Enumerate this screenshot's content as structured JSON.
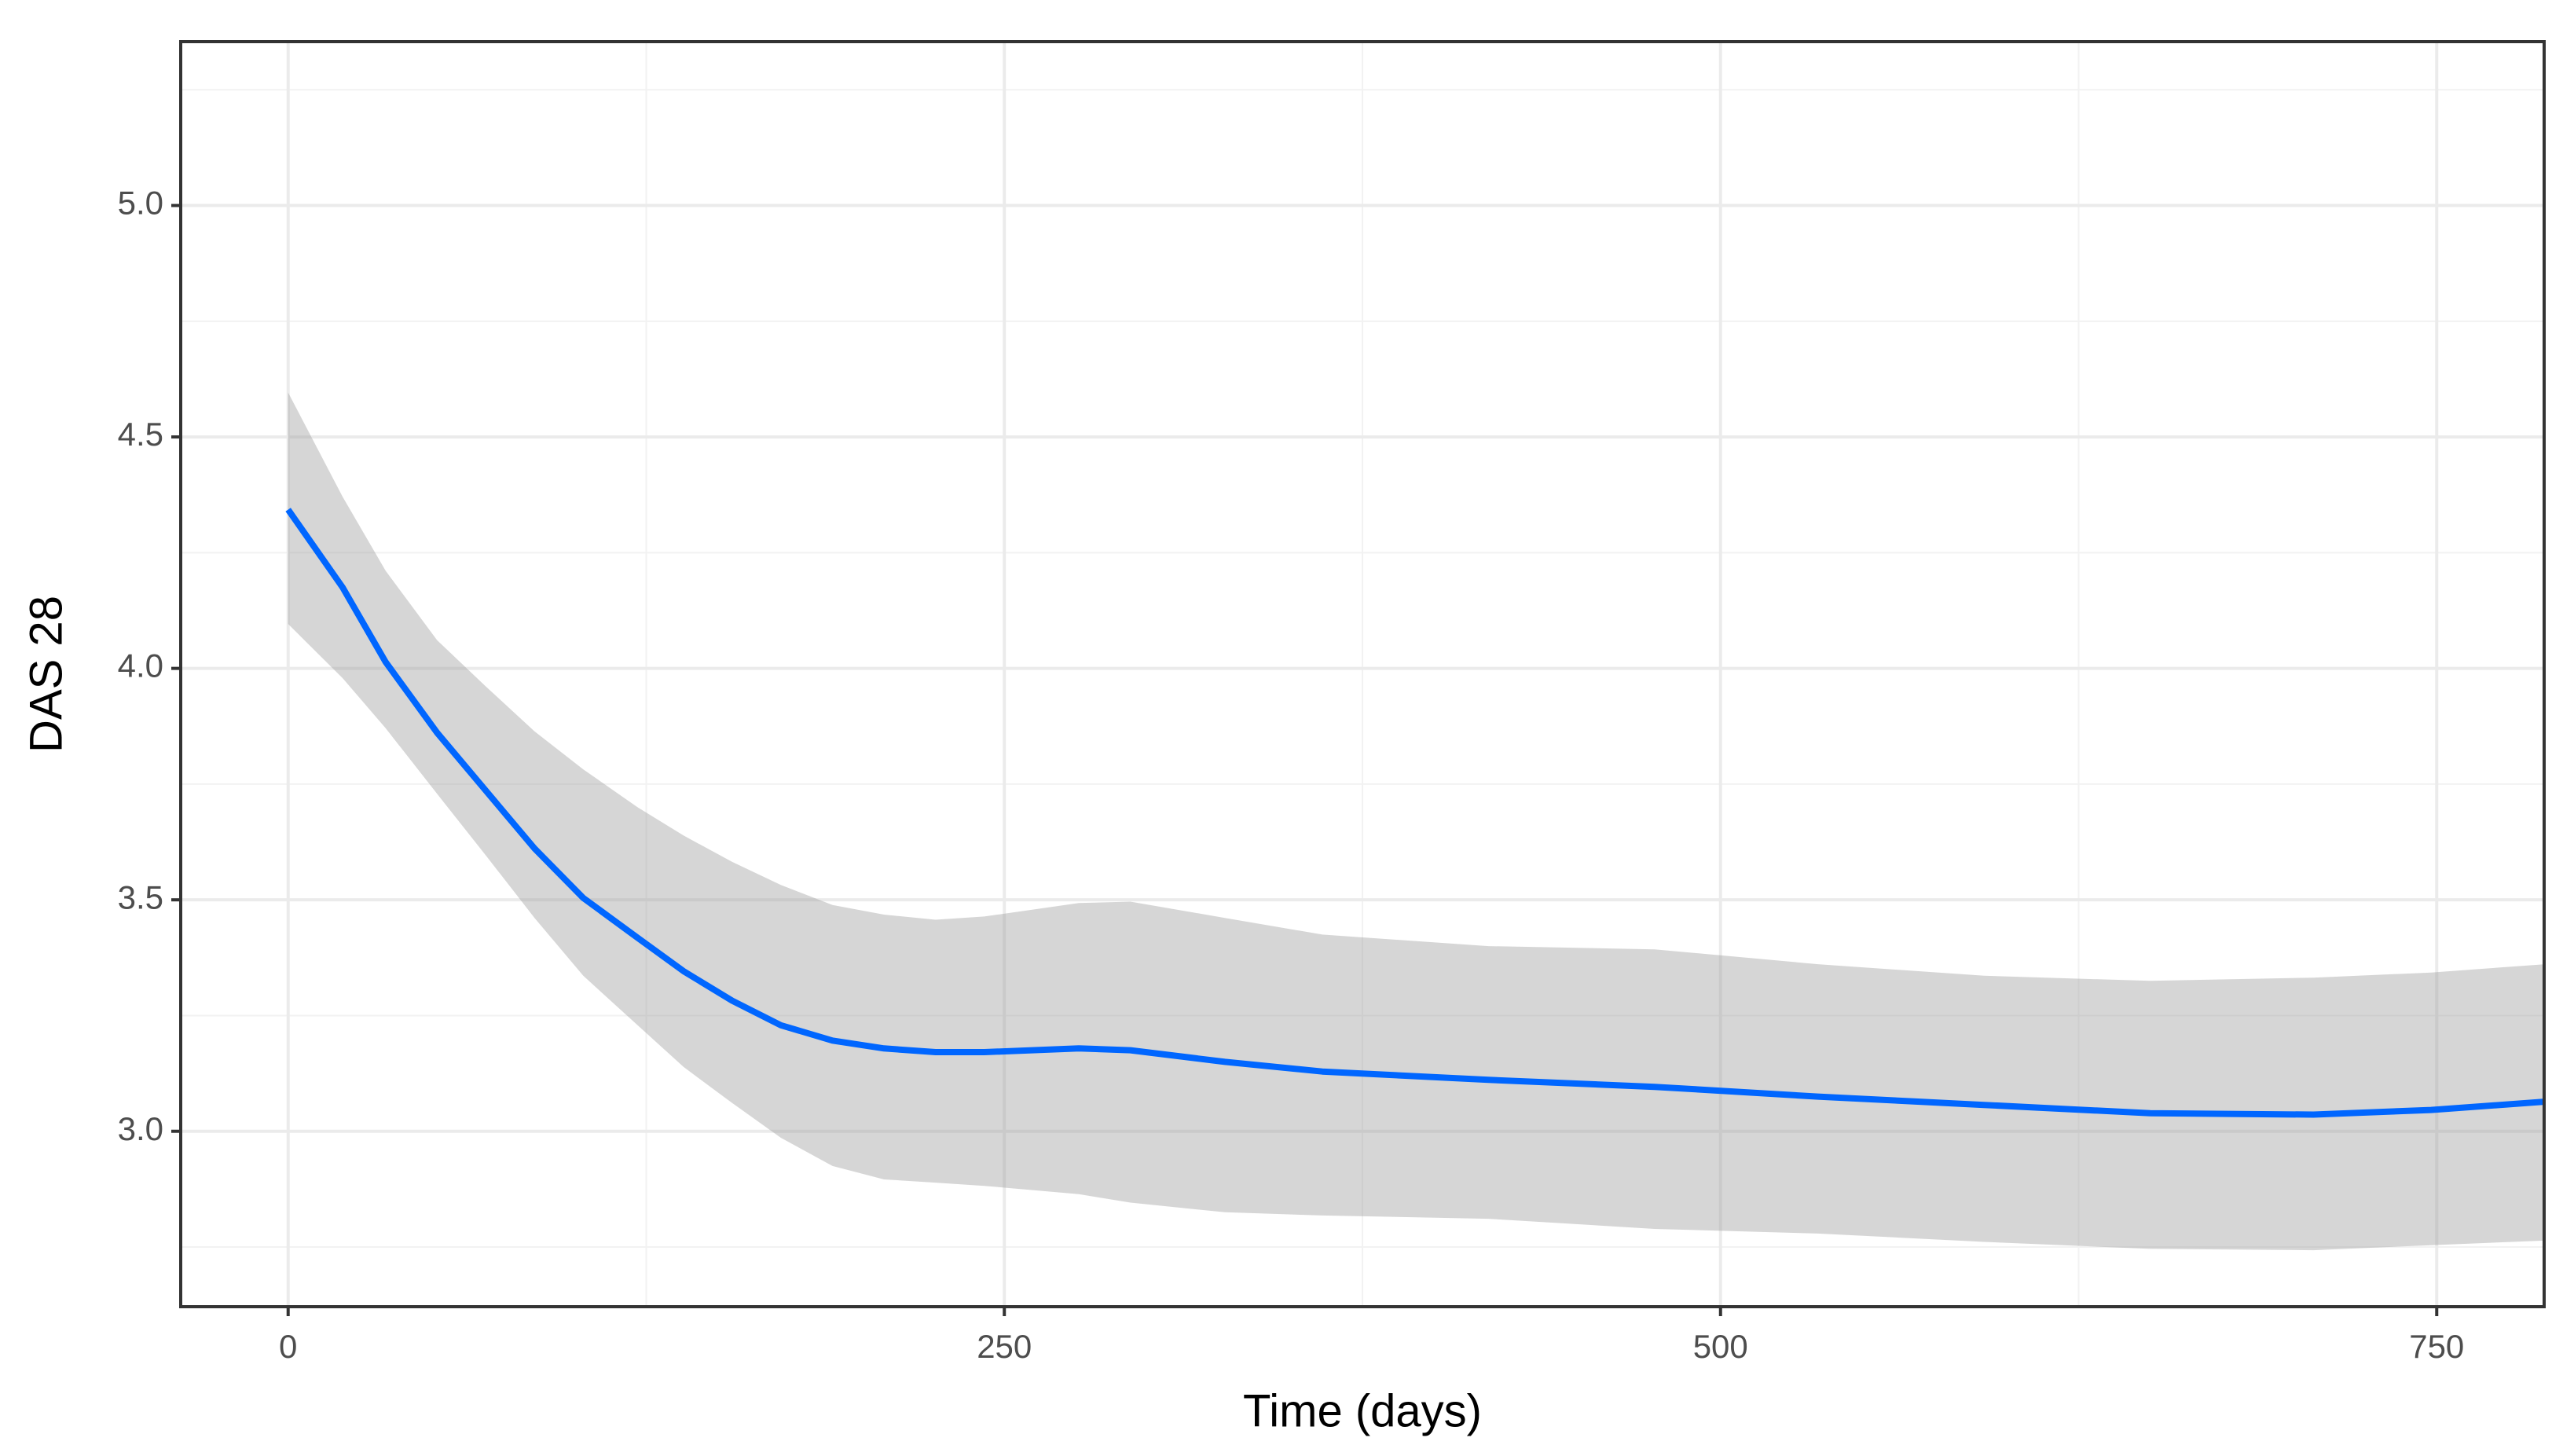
{
  "chart_data": {
    "type": "line",
    "x_label": "Time (days)",
    "y_label": "DAS 28",
    "x": [
      0,
      19,
      34,
      52,
      69,
      86,
      103,
      122,
      138,
      155,
      172,
      190,
      208,
      226,
      243,
      276,
      294,
      327,
      361,
      419,
      477,
      534,
      592,
      650,
      707,
      748,
      788
    ],
    "values": [
      4.343,
      4.175,
      4.014,
      3.861,
      3.736,
      3.611,
      3.504,
      3.418,
      3.346,
      3.282,
      3.229,
      3.196,
      3.179,
      3.171,
      3.171,
      3.179,
      3.175,
      3.15,
      3.129,
      3.111,
      3.096,
      3.075,
      3.057,
      3.039,
      3.036,
      3.046,
      3.064
    ],
    "upper": [
      4.596,
      4.371,
      4.211,
      4.061,
      3.961,
      3.864,
      3.782,
      3.7,
      3.639,
      3.582,
      3.532,
      3.489,
      3.468,
      3.457,
      3.464,
      3.493,
      3.496,
      3.461,
      3.425,
      3.4,
      3.393,
      3.361,
      3.336,
      3.325,
      3.332,
      3.343,
      3.361
    ],
    "lower": [
      4.096,
      3.979,
      3.871,
      3.729,
      3.596,
      3.461,
      3.336,
      3.229,
      3.139,
      3.061,
      2.986,
      2.925,
      2.896,
      2.889,
      2.882,
      2.864,
      2.846,
      2.825,
      2.818,
      2.811,
      2.789,
      2.779,
      2.761,
      2.746,
      2.743,
      2.754,
      2.764
    ],
    "color": "#0066ff",
    "ribbon_color": "#999999",
    "xlim": [
      -37.5,
      787.5
    ],
    "xticks": [
      0,
      250,
      500,
      750
    ],
    "ylim": [
      2.621,
      5.354
    ],
    "yticks": [
      {
        "value": 3,
        "label": "3.0"
      },
      3.5,
      {
        "value": 4,
        "label": "4.0"
      },
      4.5,
      {
        "value": 5,
        "label": "5.0"
      }
    ],
    "grid": true
  }
}
